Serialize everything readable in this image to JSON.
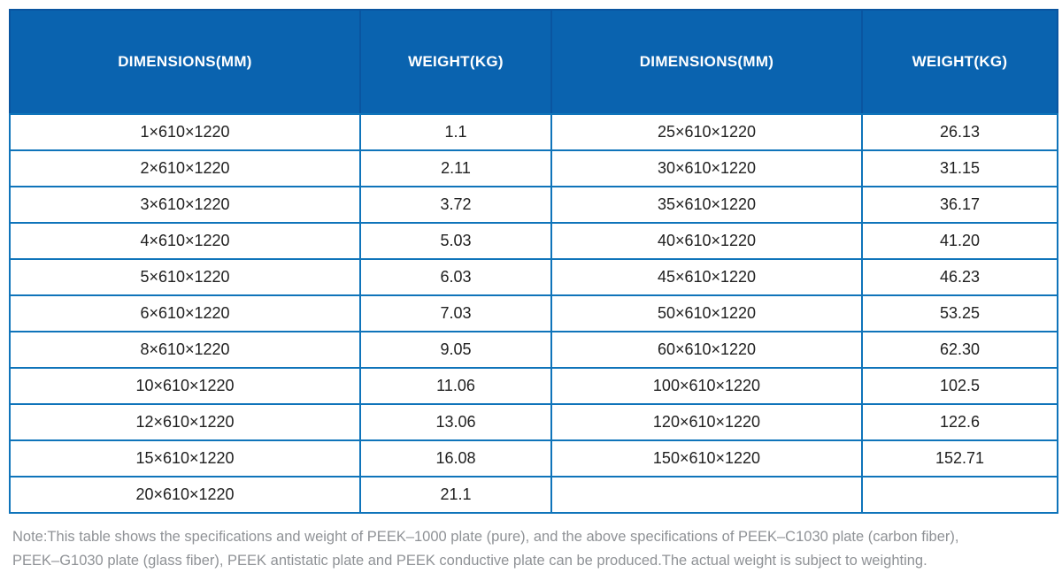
{
  "colors": {
    "header_bg": "#0a63af",
    "header_divider": "#0a55a0",
    "grid_border": "#0f74ba",
    "header_text": "#ffffff",
    "cell_text": "#212121",
    "note_text": "#8f9296"
  },
  "table": {
    "headers": [
      "DIMENSIONS(MM)",
      "WEIGHT(KG)",
      "DIMENSIONS(MM)",
      "WEIGHT(KG)"
    ],
    "rows": [
      [
        "1×610×1220",
        "1.1",
        "25×610×1220",
        "26.13"
      ],
      [
        "2×610×1220",
        "2.11",
        "30×610×1220",
        "31.15"
      ],
      [
        "3×610×1220",
        "3.72",
        "35×610×1220",
        "36.17"
      ],
      [
        "4×610×1220",
        "5.03",
        "40×610×1220",
        "41.20"
      ],
      [
        "5×610×1220",
        "6.03",
        "45×610×1220",
        "46.23"
      ],
      [
        "6×610×1220",
        "7.03",
        "50×610×1220",
        "53.25"
      ],
      [
        "8×610×1220",
        "9.05",
        "60×610×1220",
        "62.30"
      ],
      [
        "10×610×1220",
        "11.06",
        "100×610×1220",
        "102.5"
      ],
      [
        "12×610×1220",
        "13.06",
        "120×610×1220",
        "122.6"
      ],
      [
        "15×610×1220",
        "16.08",
        "150×610×1220",
        "152.71"
      ],
      [
        "20×610×1220",
        "21.1",
        "",
        ""
      ]
    ]
  },
  "note": {
    "line1": "Note:This table shows the specifications and weight of PEEK–1000 plate (pure), and the above specifications of PEEK–C1030 plate (carbon fiber),",
    "line2": "PEEK–G1030 plate (glass fiber), PEEK antistatic plate and PEEK conductive plate can be produced.The actual weight is subject to weighting."
  },
  "chart_data": {
    "type": "table",
    "title": "PEEK-1000 plate specifications and weight",
    "columns": [
      "DIMENSIONS(MM)",
      "WEIGHT(KG)",
      "DIMENSIONS(MM)",
      "WEIGHT(KG)"
    ],
    "rows": [
      [
        "1×610×1220",
        "1.1",
        "25×610×1220",
        "26.13"
      ],
      [
        "2×610×1220",
        "2.11",
        "30×610×1220",
        "31.15"
      ],
      [
        "3×610×1220",
        "3.72",
        "35×610×1220",
        "36.17"
      ],
      [
        "4×610×1220",
        "5.03",
        "40×610×1220",
        "41.20"
      ],
      [
        "5×610×1220",
        "6.03",
        "45×610×1220",
        "46.23"
      ],
      [
        "6×610×1220",
        "7.03",
        "50×610×1220",
        "53.25"
      ],
      [
        "8×610×1220",
        "9.05",
        "60×610×1220",
        "62.30"
      ],
      [
        "10×610×1220",
        "11.06",
        "100×610×1220",
        "102.5"
      ],
      [
        "12×610×1220",
        "13.06",
        "120×610×1220",
        "122.6"
      ],
      [
        "15×610×1220",
        "16.08",
        "150×610×1220",
        "152.71"
      ],
      [
        "20×610×1220",
        "21.1",
        "",
        ""
      ]
    ]
  }
}
